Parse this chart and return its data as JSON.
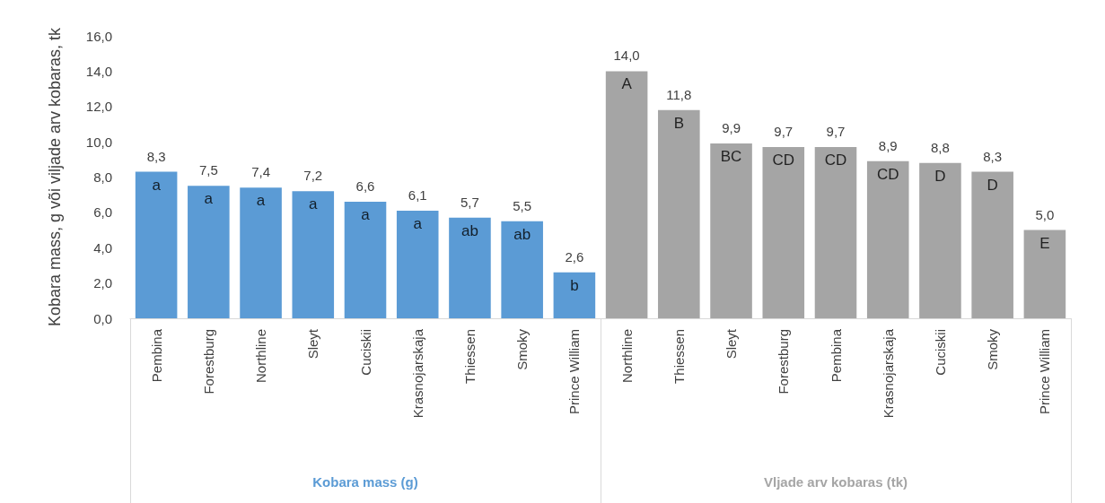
{
  "chart_data": {
    "type": "bar",
    "ylabel": "Kobara mass, g või viljade arv kobaras, tk",
    "categories": [
      "Pembina",
      "Forestburg",
      "Northline",
      "Sleyt",
      "Cuciskii",
      "Krasnojarskaja",
      "Thiessen",
      "Smoky",
      "Prince William",
      "Northline",
      "Thiessen",
      "Sleyt",
      "Forestburg",
      "Pembina",
      "Krasnojarskaja",
      "Cuciskii",
      "Smoky",
      "Prince William"
    ],
    "series": [
      {
        "name": "Kobara mass (g)",
        "color": "#5b9bd5",
        "values": [
          8.3,
          7.5,
          7.4,
          7.2,
          6.6,
          6.1,
          5.7,
          5.5,
          2.6,
          null,
          null,
          null,
          null,
          null,
          null,
          null,
          null,
          null
        ],
        "value_labels": [
          "8,3",
          "7,5",
          "7,4",
          "7,2",
          "6,6",
          "6,1",
          "5,7",
          "5,5",
          "2,6",
          null,
          null,
          null,
          null,
          null,
          null,
          null,
          null,
          null
        ]
      },
      {
        "name": "Vljade arv kobaras (tk)",
        "color": "#a5a5a5",
        "values": [
          null,
          null,
          null,
          null,
          null,
          null,
          null,
          null,
          null,
          14.0,
          11.8,
          9.9,
          9.7,
          9.7,
          8.9,
          8.8,
          8.3,
          5.0
        ],
        "value_labels": [
          null,
          null,
          null,
          null,
          null,
          null,
          null,
          null,
          null,
          "14,0",
          "11,8",
          "9,9",
          "9,7",
          "9,7",
          "8,9",
          "8,8",
          "8,3",
          "5,0"
        ]
      }
    ],
    "ylim": [
      0,
      16
    ],
    "yticks": [
      {
        "value": 0,
        "label": "0,0"
      },
      {
        "value": 2,
        "label": "2,0"
      },
      {
        "value": 4,
        "label": "4,0"
      },
      {
        "value": 6,
        "label": "6,0"
      },
      {
        "value": 8,
        "label": "8,0"
      },
      {
        "value": 10,
        "label": "10,0"
      },
      {
        "value": 12,
        "label": "12,0"
      },
      {
        "value": 14,
        "label": "14,0"
      },
      {
        "value": 16,
        "label": "16,0"
      }
    ],
    "grid": false,
    "legend": false,
    "annotations": [
      "a",
      "a",
      "a",
      "a",
      "a",
      "a",
      "ab",
      "ab",
      "b",
      "A",
      "B",
      "BC",
      "CD",
      "CD",
      "CD",
      "D",
      "D",
      "E"
    ]
  }
}
